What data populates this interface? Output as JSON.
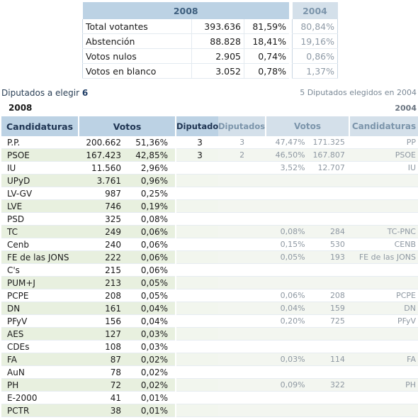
{
  "summary": {
    "header_2008": "2008",
    "header_2004": "2004",
    "rows": [
      {
        "label": "Total votantes",
        "count": "393.636",
        "pct": "81,59%",
        "pct_2004": "80,84%"
      },
      {
        "label": "Abstención",
        "count": "88.828",
        "pct": "18,41%",
        "pct_2004": "19,16%"
      },
      {
        "label": "Votos nulos",
        "count": "2.905",
        "pct": "0,74%",
        "pct_2004": "0,86%"
      },
      {
        "label": "Votos en blanco",
        "count": "3.052",
        "pct": "0,78%",
        "pct_2004": "1,37%"
      }
    ]
  },
  "deputies": {
    "label": "Diputados a elegir",
    "count": "6",
    "elected_2004": "5 Diputados elegidos en 2004"
  },
  "year_2008": "2008",
  "year_2004": "2004",
  "headers_2008": {
    "candidaturas": "Candidaturas",
    "votos": "Votos",
    "diputados": "Diputados"
  },
  "headers_2004": {
    "diputados": "Diputados",
    "votos": "Votos",
    "candidaturas": "Candidaturas"
  },
  "results_2008": [
    {
      "name": "P.P.",
      "votes": "200.662",
      "pct": "51,36%",
      "seats": "3"
    },
    {
      "name": "PSOE",
      "votes": "167.423",
      "pct": "42,85%",
      "seats": "3"
    },
    {
      "name": "IU",
      "votes": "11.560",
      "pct": "2,96%",
      "seats": ""
    },
    {
      "name": "UPyD",
      "votes": "3.761",
      "pct": "0,96%",
      "seats": ""
    },
    {
      "name": "LV-GV",
      "votes": "987",
      "pct": "0,25%",
      "seats": ""
    },
    {
      "name": "LVE",
      "votes": "746",
      "pct": "0,19%",
      "seats": ""
    },
    {
      "name": "PSD",
      "votes": "325",
      "pct": "0,08%",
      "seats": ""
    },
    {
      "name": "TC",
      "votes": "249",
      "pct": "0,06%",
      "seats": ""
    },
    {
      "name": "Cenb",
      "votes": "240",
      "pct": "0,06%",
      "seats": ""
    },
    {
      "name": "FE de las JONS",
      "votes": "222",
      "pct": "0,06%",
      "seats": ""
    },
    {
      "name": "C's",
      "votes": "215",
      "pct": "0,06%",
      "seats": ""
    },
    {
      "name": "PUM+J",
      "votes": "213",
      "pct": "0,05%",
      "seats": ""
    },
    {
      "name": "PCPE",
      "votes": "208",
      "pct": "0,05%",
      "seats": ""
    },
    {
      "name": "DN",
      "votes": "161",
      "pct": "0,04%",
      "seats": ""
    },
    {
      "name": "PFyV",
      "votes": "156",
      "pct": "0,04%",
      "seats": ""
    },
    {
      "name": "AES",
      "votes": "127",
      "pct": "0,03%",
      "seats": ""
    },
    {
      "name": "CDEs",
      "votes": "108",
      "pct": "0,03%",
      "seats": ""
    },
    {
      "name": "FA",
      "votes": "87",
      "pct": "0,02%",
      "seats": ""
    },
    {
      "name": "AuN",
      "votes": "78",
      "pct": "0,02%",
      "seats": ""
    },
    {
      "name": "PH",
      "votes": "72",
      "pct": "0,02%",
      "seats": ""
    },
    {
      "name": "E-2000",
      "votes": "41",
      "pct": "0,01%",
      "seats": ""
    },
    {
      "name": "PCTR",
      "votes": "38",
      "pct": "0,01%",
      "seats": ""
    }
  ],
  "results_2004": [
    {
      "seats": "3",
      "pct": "47,47%",
      "votes": "171.325",
      "name": "PP"
    },
    {
      "seats": "2",
      "pct": "46,50%",
      "votes": "167.807",
      "name": "PSOE"
    },
    {
      "seats": "",
      "pct": "3,52%",
      "votes": "12.707",
      "name": "IU"
    },
    {
      "seats": "",
      "pct": "",
      "votes": "",
      "name": ""
    },
    {
      "seats": "",
      "pct": "",
      "votes": "",
      "name": ""
    },
    {
      "seats": "",
      "pct": "",
      "votes": "",
      "name": ""
    },
    {
      "seats": "",
      "pct": "",
      "votes": "",
      "name": ""
    },
    {
      "seats": "",
      "pct": "0,08%",
      "votes": "284",
      "name": "TC-PNC"
    },
    {
      "seats": "",
      "pct": "0,15%",
      "votes": "530",
      "name": "CENB"
    },
    {
      "seats": "",
      "pct": "0,05%",
      "votes": "193",
      "name": "FE de las JONS"
    },
    {
      "seats": "",
      "pct": "",
      "votes": "",
      "name": ""
    },
    {
      "seats": "",
      "pct": "",
      "votes": "",
      "name": ""
    },
    {
      "seats": "",
      "pct": "0,06%",
      "votes": "208",
      "name": "PCPE"
    },
    {
      "seats": "",
      "pct": "0,04%",
      "votes": "159",
      "name": "DN"
    },
    {
      "seats": "",
      "pct": "0,20%",
      "votes": "725",
      "name": "PFyV"
    },
    {
      "seats": "",
      "pct": "",
      "votes": "",
      "name": ""
    },
    {
      "seats": "",
      "pct": "",
      "votes": "",
      "name": ""
    },
    {
      "seats": "",
      "pct": "0,03%",
      "votes": "114",
      "name": "FA"
    },
    {
      "seats": "",
      "pct": "",
      "votes": "",
      "name": ""
    },
    {
      "seats": "",
      "pct": "0,09%",
      "votes": "322",
      "name": "PH"
    },
    {
      "seats": "",
      "pct": "",
      "votes": "",
      "name": ""
    },
    {
      "seats": "",
      "pct": "",
      "votes": "",
      "name": ""
    }
  ]
}
